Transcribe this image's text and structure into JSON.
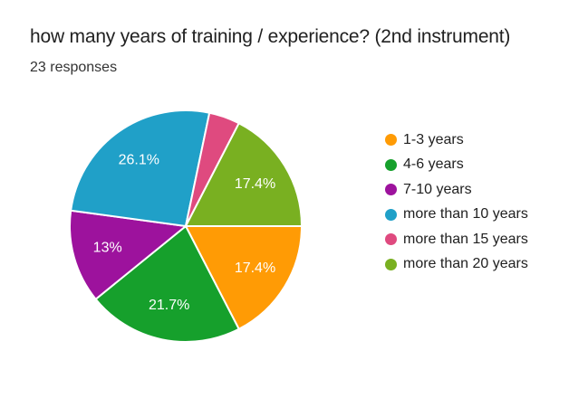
{
  "chart_data": {
    "type": "pie",
    "title": "how many years of training / experience? (2nd instrument)",
    "subtitle": "23 responses",
    "total_responses": 23,
    "legend_position": "right",
    "start_angle_deg": 90,
    "direction": "clockwise",
    "slice_label_color": "#ffffff",
    "slice_border_color": "#ffffff",
    "background_color": "#ffffff",
    "text_color": "#212121",
    "slices": [
      {
        "label": "1-3 years",
        "value_percent": 17.4,
        "display_label": "17.4%",
        "color": "#FF9B05"
      },
      {
        "label": "4-6 years",
        "value_percent": 21.7,
        "display_label": "21.7%",
        "color": "#16A02C"
      },
      {
        "label": "7-10 years",
        "value_percent": 13,
        "display_label": "13%",
        "color": "#9D129D"
      },
      {
        "label": "more than 10 years",
        "value_percent": 26.1,
        "display_label": "26.1%",
        "color": "#20A0C8"
      },
      {
        "label": "more than 15 years",
        "value_percent": 4.3,
        "display_label": "",
        "color": "#DF4A7F"
      },
      {
        "label": "more than 20 years",
        "value_percent": 17.4,
        "display_label": "17.4%",
        "color": "#79B021"
      }
    ]
  }
}
